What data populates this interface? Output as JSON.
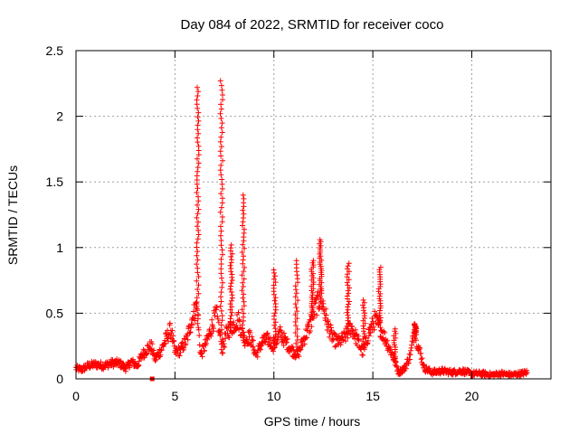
{
  "chart_data": {
    "type": "scatter",
    "title": "Day 084 of 2022, SRMTID for receiver coco",
    "xlabel": "GPS time / hours",
    "ylabel": "SRMTID / TECUs",
    "xlim": [
      0,
      24
    ],
    "ylim": [
      0,
      2.5
    ],
    "x_ticks": [
      0,
      5,
      10,
      15,
      20
    ],
    "y_ticks": [
      0,
      0.5,
      1,
      1.5,
      2,
      2.5
    ],
    "x_tick_labels": [
      "0",
      "5",
      "10",
      "15",
      "20"
    ],
    "y_tick_labels": [
      "0",
      "0.5",
      "1",
      "1.5",
      "2",
      "2.5"
    ],
    "grid": true,
    "marker": "+",
    "series_color": "#ff0000",
    "baseline_points": [
      [
        0.0,
        0.08
      ],
      [
        0.3,
        0.07
      ],
      [
        0.6,
        0.1
      ],
      [
        1.0,
        0.11
      ],
      [
        1.4,
        0.1
      ],
      [
        1.8,
        0.12
      ],
      [
        2.2,
        0.12
      ],
      [
        2.5,
        0.08
      ],
      [
        2.8,
        0.13
      ],
      [
        3.1,
        0.1
      ],
      [
        3.3,
        0.17
      ],
      [
        3.6,
        0.23
      ],
      [
        3.8,
        0.25
      ],
      [
        4.0,
        0.15
      ],
      [
        4.3,
        0.22
      ],
      [
        4.6,
        0.32
      ],
      [
        4.8,
        0.38
      ],
      [
        5.0,
        0.2
      ],
      [
        5.3,
        0.22
      ],
      [
        5.6,
        0.3
      ],
      [
        5.9,
        0.48
      ],
      [
        6.1,
        0.55
      ],
      [
        6.3,
        0.18
      ],
      [
        6.6,
        0.28
      ],
      [
        6.9,
        0.42
      ],
      [
        7.1,
        0.5
      ],
      [
        7.4,
        0.22
      ],
      [
        7.6,
        0.35
      ],
      [
        7.9,
        0.4
      ],
      [
        8.2,
        0.45
      ],
      [
        8.5,
        0.3
      ],
      [
        8.8,
        0.32
      ],
      [
        9.1,
        0.18
      ],
      [
        9.4,
        0.28
      ],
      [
        9.7,
        0.3
      ],
      [
        10.0,
        0.25
      ],
      [
        10.3,
        0.35
      ],
      [
        10.6,
        0.28
      ],
      [
        10.9,
        0.22
      ],
      [
        11.2,
        0.18
      ],
      [
        11.5,
        0.3
      ],
      [
        11.8,
        0.4
      ],
      [
        12.1,
        0.55
      ],
      [
        12.4,
        0.62
      ],
      [
        12.7,
        0.42
      ],
      [
        13.0,
        0.3
      ],
      [
        13.3,
        0.28
      ],
      [
        13.6,
        0.32
      ],
      [
        13.9,
        0.4
      ],
      [
        14.2,
        0.3
      ],
      [
        14.5,
        0.2
      ],
      [
        14.8,
        0.35
      ],
      [
        15.1,
        0.45
      ],
      [
        15.4,
        0.38
      ],
      [
        15.7,
        0.28
      ],
      [
        16.0,
        0.18
      ],
      [
        16.3,
        0.05
      ],
      [
        16.6,
        0.08
      ],
      [
        16.9,
        0.18
      ],
      [
        17.1,
        0.38
      ],
      [
        17.3,
        0.25
      ],
      [
        17.6,
        0.08
      ],
      [
        18.0,
        0.05
      ],
      [
        18.5,
        0.06
      ],
      [
        19.0,
        0.05
      ],
      [
        19.5,
        0.06
      ],
      [
        20.0,
        0.04
      ],
      [
        20.5,
        0.04
      ],
      [
        21.0,
        0.03
      ],
      [
        21.5,
        0.04
      ],
      [
        22.0,
        0.03
      ],
      [
        22.5,
        0.04
      ],
      [
        22.8,
        0.05
      ]
    ],
    "spikes": [
      {
        "x": 6.15,
        "peak": 2.22
      },
      {
        "x": 7.35,
        "peak": 2.27
      },
      {
        "x": 7.85,
        "peak": 1.02
      },
      {
        "x": 8.45,
        "peak": 1.4
      },
      {
        "x": 10.05,
        "peak": 0.83
      },
      {
        "x": 11.15,
        "peak": 0.9
      },
      {
        "x": 11.95,
        "peak": 0.9
      },
      {
        "x": 12.35,
        "peak": 1.06
      },
      {
        "x": 13.75,
        "peak": 0.88
      },
      {
        "x": 14.55,
        "peak": 0.6
      },
      {
        "x": 15.35,
        "peak": 0.85
      },
      {
        "x": 16.1,
        "peak": 0.38
      },
      {
        "x": 17.15,
        "peak": 0.42
      }
    ],
    "isolated_points": [
      [
        3.85,
        0.0
      ]
    ]
  }
}
